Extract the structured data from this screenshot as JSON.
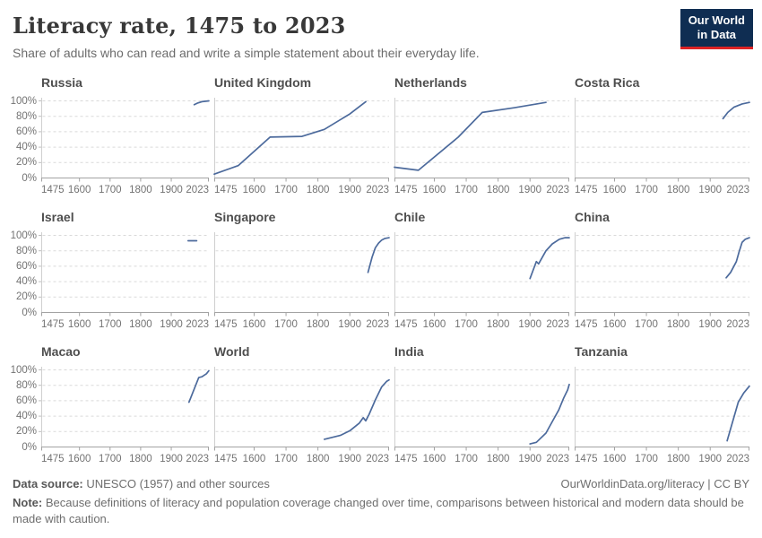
{
  "header": {
    "title": "Literacy rate, 1475 to 2023",
    "subtitle": "Share of adults who can read and write a simple statement about their everyday life.",
    "logo": {
      "line1": "Our World",
      "line2": "in Data",
      "bg_color": "#0f2d52",
      "accent_color": "#dc2325"
    }
  },
  "chart_data": {
    "type": "line",
    "layout": "small-multiples-4x3",
    "grid": "dashed-horizontal",
    "legend": "none",
    "line_color": "#4c6a9c",
    "axis_color": "#a3a3a3",
    "gridline_color": "#d9d9d9",
    "xlim": [
      1475,
      2023
    ],
    "ylim": [
      0,
      100
    ],
    "x_ticks": [
      1475,
      1600,
      1700,
      1800,
      1900,
      2023
    ],
    "y_ticks": [
      0,
      20,
      40,
      60,
      80,
      100
    ],
    "y_tick_suffix": "%",
    "y_labels_shown_on": "first-column-only",
    "facets": [
      {
        "title": "Russia",
        "points": [
          [
            1975,
            95
          ],
          [
            1985,
            97
          ],
          [
            2000,
            99
          ],
          [
            2023,
            100
          ]
        ]
      },
      {
        "title": "United Kingdom",
        "points": [
          [
            1475,
            5
          ],
          [
            1550,
            16
          ],
          [
            1650,
            53
          ],
          [
            1750,
            54
          ],
          [
            1820,
            63
          ],
          [
            1900,
            83
          ],
          [
            1950,
            99
          ]
        ]
      },
      {
        "title": "Netherlands",
        "points": [
          [
            1475,
            14
          ],
          [
            1550,
            10
          ],
          [
            1675,
            53
          ],
          [
            1750,
            85
          ],
          [
            1850,
            91
          ],
          [
            1950,
            98
          ]
        ]
      },
      {
        "title": "Costa Rica",
        "points": [
          [
            1940,
            77
          ],
          [
            1955,
            85
          ],
          [
            1975,
            92
          ],
          [
            2000,
            96
          ],
          [
            2023,
            98
          ]
        ]
      },
      {
        "title": "Israel",
        "points": [
          [
            1955,
            93
          ],
          [
            1983,
            93
          ]
        ]
      },
      {
        "title": "Singapore",
        "points": [
          [
            1957,
            52
          ],
          [
            1970,
            72
          ],
          [
            1980,
            84
          ],
          [
            1990,
            90
          ],
          [
            2000,
            94
          ],
          [
            2010,
            96
          ],
          [
            2023,
            97
          ]
        ]
      },
      {
        "title": "Chile",
        "points": [
          [
            1900,
            44
          ],
          [
            1920,
            66
          ],
          [
            1927,
            63
          ],
          [
            1950,
            80
          ],
          [
            1970,
            89
          ],
          [
            1992,
            95
          ],
          [
            2010,
            97
          ],
          [
            2023,
            97
          ]
        ]
      },
      {
        "title": "China",
        "points": [
          [
            1950,
            45
          ],
          [
            1964,
            52
          ],
          [
            1982,
            66
          ],
          [
            1990,
            78
          ],
          [
            2000,
            91
          ],
          [
            2010,
            95
          ],
          [
            2023,
            97
          ]
        ]
      },
      {
        "title": "Macao",
        "points": [
          [
            1958,
            58
          ],
          [
            1990,
            90
          ],
          [
            2000,
            91
          ],
          [
            2015,
            95
          ],
          [
            2023,
            99
          ]
        ]
      },
      {
        "title": "World",
        "points": [
          [
            1820,
            10
          ],
          [
            1870,
            15
          ],
          [
            1900,
            21
          ],
          [
            1930,
            31
          ],
          [
            1942,
            38
          ],
          [
            1950,
            34
          ],
          [
            1960,
            42
          ],
          [
            1980,
            61
          ],
          [
            2000,
            78
          ],
          [
            2015,
            85
          ],
          [
            2023,
            87
          ]
        ]
      },
      {
        "title": "India",
        "points": [
          [
            1900,
            4
          ],
          [
            1920,
            6
          ],
          [
            1950,
            18
          ],
          [
            1970,
            33
          ],
          [
            1990,
            48
          ],
          [
            2005,
            63
          ],
          [
            2018,
            74
          ],
          [
            2023,
            81
          ]
        ]
      },
      {
        "title": "Tanzania",
        "points": [
          [
            1953,
            8
          ],
          [
            1988,
            58
          ],
          [
            2005,
            70
          ],
          [
            2023,
            79
          ]
        ]
      }
    ]
  },
  "footer": {
    "source_label": "Data source:",
    "source_text": " UNESCO (1957) and other sources",
    "attribution": "OurWorldinData.org/literacy | CC BY",
    "note_label": "Note:",
    "note_text": " Because definitions of literacy and population coverage changed over time, comparisons between historical and modern data should be made with caution."
  }
}
